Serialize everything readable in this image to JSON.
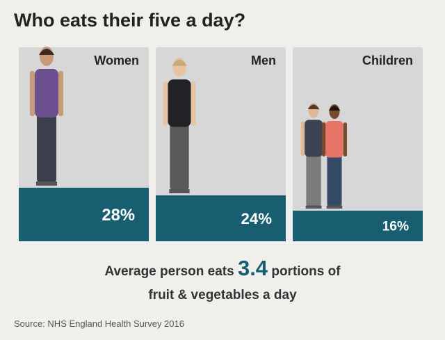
{
  "chart_data": {
    "type": "bar",
    "title": "Who eats their five a day?",
    "categories": [
      "Women",
      "Men",
      "Children"
    ],
    "values": [
      28,
      24,
      16
    ],
    "value_labels": [
      "28%",
      "24%",
      "16%"
    ],
    "color": "#175e71",
    "annotation": {
      "before": "Average person eats",
      "value": 3.4,
      "after": "portions of",
      "line2": "fruit & vegetables a day"
    },
    "source": "Source: NHS England Health Survey 2016"
  }
}
